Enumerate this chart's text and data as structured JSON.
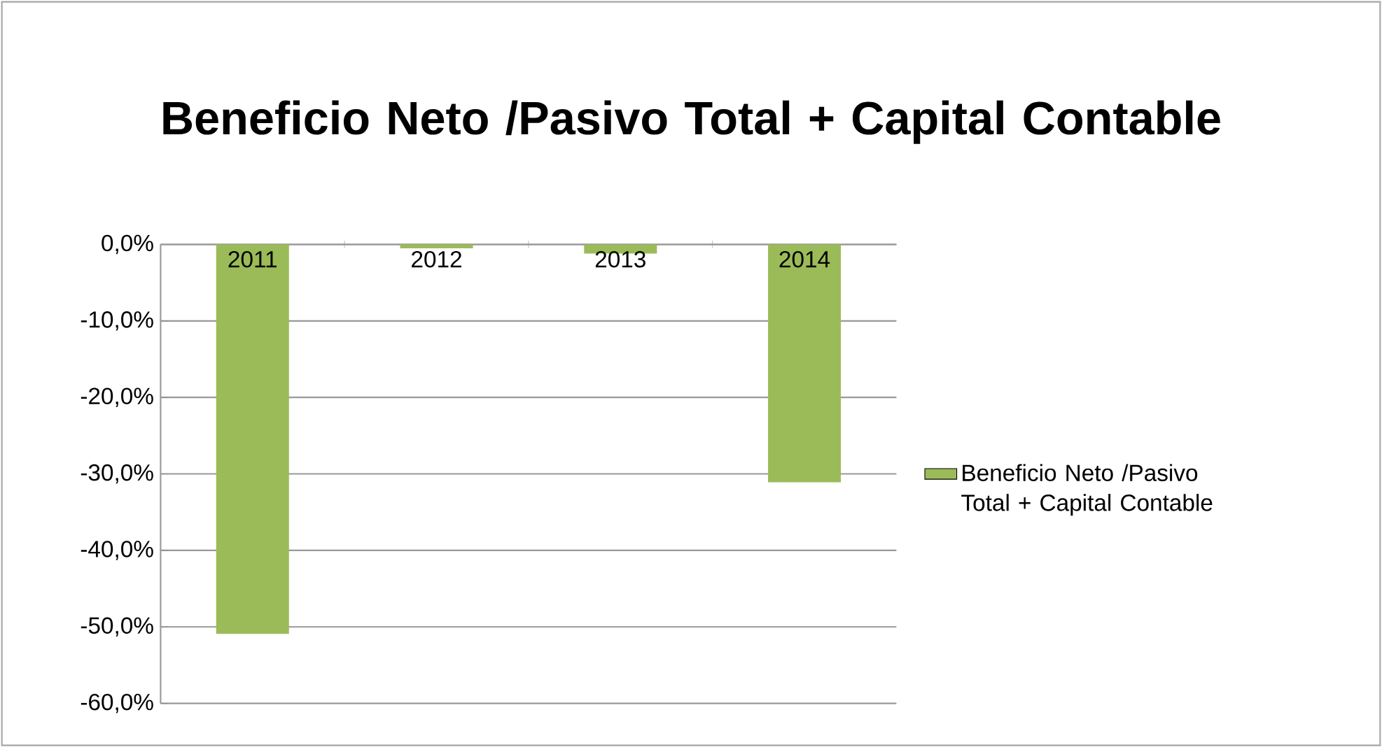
{
  "chart_data": {
    "type": "bar",
    "title": "Beneficio Neto /Pasivo Total + Capital Contable",
    "categories": [
      "2011",
      "2012",
      "2013",
      "2014"
    ],
    "series": [
      {
        "name": "Beneficio Neto /Pasivo Total + Capital Contable",
        "color": "#9bbb59",
        "values": [
          -50.9,
          -0.5,
          -1.2,
          -31.1
        ]
      }
    ],
    "ylim": [
      -60,
      0
    ],
    "yticks": [
      {
        "value": -60,
        "label": "-60,0%"
      },
      {
        "value": -50,
        "label": "-50,0%"
      },
      {
        "value": -40,
        "label": "-40,0%"
      },
      {
        "value": -30,
        "label": "-30,0%"
      },
      {
        "value": -20,
        "label": "-20,0%"
      },
      {
        "value": -10,
        "label": "-10,0%"
      },
      {
        "value": 0,
        "label": "0,0%"
      }
    ],
    "grid": "y",
    "legend": "right"
  }
}
